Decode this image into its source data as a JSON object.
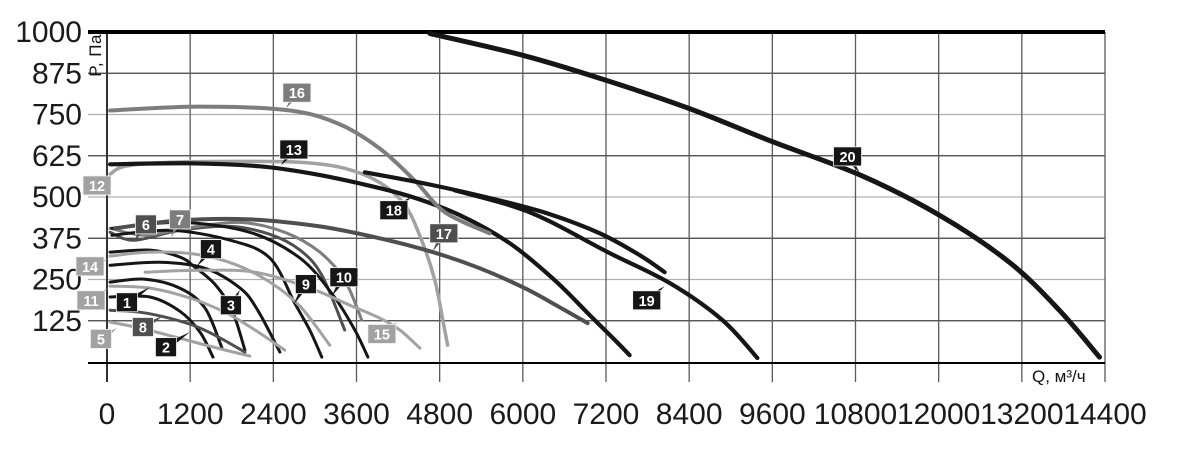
{
  "chart_data": {
    "type": "line",
    "title": "",
    "xlabel": "Q, м³/ч",
    "ylabel": "P, Па",
    "xlim": [
      0,
      14400
    ],
    "ylim": [
      0,
      1000
    ],
    "xticks": [
      0,
      1200,
      2400,
      3600,
      4800,
      6000,
      7200,
      8400,
      9600,
      10800,
      12000,
      13200,
      14400
    ],
    "yticks": [
      125,
      250,
      375,
      500,
      625,
      750,
      875,
      1000
    ],
    "grid": "on",
    "legend": "numbered boxes on curves",
    "palette": {
      "black": "#161616",
      "dark_gray": "#4f4f4f",
      "gray": "#7d7d7d",
      "light_gray": "#a2a2a2"
    },
    "series": [
      {
        "name": "1",
        "color": "#161616",
        "width": 3,
        "points": [
          [
            45,
            242
          ],
          [
            550,
            251
          ],
          [
            1050,
            224
          ],
          [
            1415,
            163
          ],
          [
            1660,
            42
          ]
        ],
        "label": {
          "box": [
            288,
            181
          ],
          "tip": [
            620,
            227
          ]
        }
      },
      {
        "name": "2",
        "color": "#161616",
        "width": 3,
        "points": [
          [
            45,
            197
          ],
          [
            620,
            197
          ],
          [
            1050,
            154
          ],
          [
            1340,
            91
          ],
          [
            1530,
            15
          ]
        ],
        "label": {
          "box": [
            851,
            45
          ],
          "tip": [
            1197,
            91
          ]
        }
      },
      {
        "name": "3",
        "color": "#161616",
        "width": 3,
        "points": [
          [
            45,
            293
          ],
          [
            765,
            302
          ],
          [
            1415,
            284
          ],
          [
            1920,
            224
          ],
          [
            2175,
            157
          ],
          [
            2495,
            30
          ]
        ],
        "label": {
          "box": [
            1788,
            172
          ],
          "tip": [
            1918,
            218
          ]
        }
      },
      {
        "name": "4",
        "color": "#161616",
        "width": 3,
        "points": [
          [
            45,
            333
          ],
          [
            620,
            339
          ],
          [
            1055,
            318
          ],
          [
            1270,
            287
          ],
          [
            1555,
            236
          ],
          [
            1805,
            157
          ],
          [
            1990,
            36
          ]
        ],
        "label": {
          "box": [
            1500,
            342
          ],
          "tip": [
            1298,
            290
          ]
        }
      },
      {
        "name": "5",
        "color": "#a2a2a2",
        "width": 3,
        "points": [
          [
            45,
            121
          ],
          [
            475,
            103
          ],
          [
            980,
            76
          ],
          [
            1485,
            48
          ],
          [
            2060,
            18
          ]
        ],
        "label": {
          "box": [
            -87,
            70
          ],
          "tip": [
            144,
            103
          ]
        }
      },
      {
        "name": "6",
        "color": "#4f4f4f",
        "width": 3,
        "points": [
          [
            45,
            393
          ],
          [
            390,
            369
          ],
          [
            1055,
            399
          ],
          [
            1775,
            411
          ],
          [
            2350,
            387
          ],
          [
            2785,
            339
          ],
          [
            3100,
            263
          ],
          [
            3430,
            97
          ]
        ],
        "label": {
          "box": [
            562,
            417
          ],
          "tip": [
            389,
            366
          ]
        }
      },
      {
        "name": "7",
        "color": "#7d7d7d",
        "width": 3,
        "points": [
          [
            45,
            405
          ],
          [
            550,
            384
          ],
          [
            1125,
            405
          ],
          [
            1920,
            423
          ],
          [
            2565,
            393
          ],
          [
            3070,
            333
          ],
          [
            3430,
            248
          ],
          [
            3675,
            127
          ]
        ],
        "label": {
          "box": [
            1053,
            432
          ],
          "tip": [
            923,
            378
          ]
        }
      },
      {
        "name": "8",
        "color": "#4f4f4f",
        "width": 3,
        "points": [
          [
            45,
            157
          ],
          [
            475,
            151
          ],
          [
            835,
            136
          ],
          [
            1270,
            109
          ],
          [
            1630,
            73
          ],
          [
            1990,
            30
          ]
        ],
        "label": {
          "box": [
            519,
            106
          ],
          "tip": [
            807,
            139
          ]
        }
      },
      {
        "name": "9",
        "color": "#161616",
        "width": 3,
        "points": [
          [
            70,
            384
          ],
          [
            910,
            399
          ],
          [
            1775,
            369
          ],
          [
            2350,
            315
          ],
          [
            2710,
            178
          ],
          [
            2925,
            97
          ],
          [
            3100,
            15
          ]
        ],
        "label": {
          "box": [
            2870,
            236
          ],
          "tip": [
            2696,
            175
          ]
        }
      },
      {
        "name": "10",
        "color": "#161616",
        "width": 3,
        "points": [
          [
            70,
            405
          ],
          [
            1055,
            423
          ],
          [
            2060,
            393
          ],
          [
            2785,
            315
          ],
          [
            3260,
            203
          ],
          [
            3575,
            97
          ],
          [
            3765,
            15
          ]
        ],
        "label": {
          "box": [
            3418,
            257
          ],
          "tip": [
            3245,
            200
          ]
        }
      },
      {
        "name": "11",
        "color": "#a2a2a2",
        "width": 3,
        "points": [
          [
            45,
            230
          ],
          [
            620,
            224
          ],
          [
            1195,
            194
          ],
          [
            1700,
            151
          ],
          [
            2135,
            97
          ],
          [
            2565,
            36
          ]
        ],
        "label": {
          "box": [
            -231,
            187
          ],
          "tip": [
            14,
            224
          ]
        }
      },
      {
        "name": "12",
        "color": "#a2a2a2",
        "width": 3.5,
        "points": [
          [
            45,
            569
          ],
          [
            260,
            593
          ],
          [
            910,
            605
          ],
          [
            1920,
            608
          ],
          [
            2785,
            605
          ],
          [
            3430,
            587
          ],
          [
            3935,
            544
          ],
          [
            4300,
            475
          ],
          [
            4540,
            369
          ],
          [
            4730,
            248
          ],
          [
            4845,
            127
          ],
          [
            4915,
            51
          ]
        ],
        "label": {
          "box": [
            -144,
            535
          ],
          "tip": [
            58,
            565
          ]
        }
      },
      {
        "name": "13",
        "color": "#161616",
        "width": 4.2,
        "points": [
          [
            45,
            599
          ],
          [
            1195,
            602
          ],
          [
            2205,
            593
          ],
          [
            2925,
            572
          ],
          [
            3650,
            541
          ],
          [
            4370,
            502
          ],
          [
            5090,
            445
          ],
          [
            5810,
            360
          ],
          [
            6460,
            248
          ],
          [
            6965,
            142
          ],
          [
            7325,
            67
          ],
          [
            7540,
            21
          ]
        ],
        "label": {
          "box": [
            2696,
            644
          ],
          "tip": [
            2509,
            596
          ]
        }
      },
      {
        "name": "14",
        "color": "#a2a2a2",
        "width": 3,
        "points": [
          [
            45,
            321
          ],
          [
            620,
            333
          ],
          [
            1270,
            327
          ],
          [
            1845,
            296
          ],
          [
            2350,
            242
          ],
          [
            2785,
            169
          ],
          [
            3215,
            51
          ]
        ],
        "label": {
          "box": [
            -245,
            290
          ],
          "tip": [
            14,
            311
          ]
        }
      },
      {
        "name": "15",
        "color": "#a2a2a2",
        "width": 3,
        "points": [
          [
            550,
            272
          ],
          [
            1340,
            278
          ],
          [
            2135,
            272
          ],
          [
            2925,
            224
          ],
          [
            3505,
            172
          ],
          [
            3935,
            133
          ],
          [
            4225,
            97
          ],
          [
            4515,
            42
          ]
        ],
        "label": {
          "box": [
            3966,
            85
          ],
          "tip": [
            4182,
            121
          ]
        }
      },
      {
        "name": "16",
        "color": "#7d7d7d",
        "width": 4,
        "points": [
          [
            45,
            762
          ],
          [
            1340,
            774
          ],
          [
            2640,
            762
          ],
          [
            3360,
            720
          ],
          [
            3935,
            647
          ],
          [
            4440,
            550
          ],
          [
            4875,
            454
          ],
          [
            5520,
            390
          ]
        ],
        "label": {
          "box": [
            2740,
            816
          ],
          "tip": [
            2581,
            768
          ]
        }
      },
      {
        "name": "17",
        "color": "#4f4f4f",
        "width": 4,
        "points": [
          [
            115,
            405
          ],
          [
            1055,
            429
          ],
          [
            2060,
            432
          ],
          [
            3070,
            411
          ],
          [
            3935,
            375
          ],
          [
            4700,
            333
          ],
          [
            5380,
            284
          ],
          [
            6025,
            224
          ],
          [
            6530,
            166
          ],
          [
            6935,
            118
          ]
        ],
        "label": {
          "box": [
            4860,
            390
          ],
          "tip": [
            4701,
            336
          ]
        }
      },
      {
        "name": "18",
        "color": "#161616",
        "width": 4.2,
        "points": [
          [
            3720,
            575
          ],
          [
            4655,
            538
          ],
          [
            5595,
            493
          ],
          [
            6390,
            448
          ],
          [
            7110,
            390
          ],
          [
            7685,
            324
          ],
          [
            8045,
            272
          ]
        ],
        "label": {
          "box": [
            4139,
            460
          ],
          "tip": [
            4398,
            502
          ]
        }
      },
      {
        "name": "19",
        "color": "#161616",
        "width": 4.2,
        "points": [
          [
            5020,
            520
          ],
          [
            5810,
            475
          ],
          [
            6360,
            429
          ],
          [
            7225,
            333
          ],
          [
            8120,
            239
          ],
          [
            8880,
            127
          ],
          [
            9385,
            12
          ]
        ],
        "label": {
          "box": [
            7787,
            187
          ],
          "tip": [
            8046,
            230
          ]
        }
      },
      {
        "name": "20",
        "color": "#161616",
        "width": 5,
        "points": [
          [
            4660,
            995
          ],
          [
            6025,
            928
          ],
          [
            7210,
            853
          ],
          [
            8405,
            768
          ],
          [
            9560,
            671
          ],
          [
            10885,
            565
          ],
          [
            12010,
            445
          ],
          [
            13020,
            302
          ],
          [
            13740,
            157
          ],
          [
            14320,
            15
          ]
        ],
        "label": {
          "box": [
            10685,
            623
          ],
          "tip": [
            10858,
            574
          ]
        }
      }
    ]
  }
}
